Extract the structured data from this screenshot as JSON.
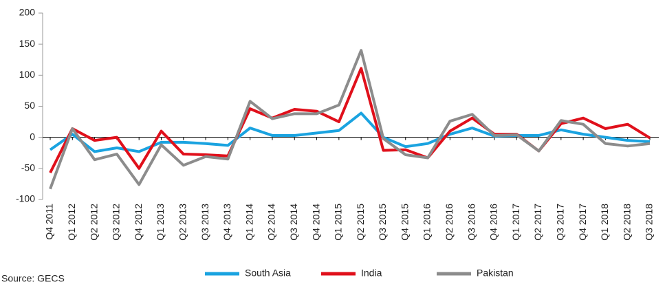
{
  "chart_data": {
    "type": "line",
    "categories": [
      "Q4 2011",
      "Q1 2012",
      "Q2 2012",
      "Q3 2012",
      "Q4 2012",
      "Q1 2013",
      "Q2 2013",
      "Q3 2013",
      "Q4 2013",
      "Q1 2014",
      "Q2 2014",
      "Q3 2014",
      "Q4 2014",
      "Q1 2015",
      "Q2 2015",
      "Q3 2015",
      "Q4 2015",
      "Q1 2016",
      "Q2 2016",
      "Q3 2016",
      "Q4 2016",
      "Q1 2017",
      "Q2 2017",
      "Q3 2017",
      "Q4 2017",
      "Q1 2018",
      "Q2 2018",
      "Q3 2018"
    ],
    "category_colors": [
      "#d7191c",
      "#222222",
      "#d7191c",
      "#d7191c",
      "#d7191c",
      "#222222",
      "#d7191c",
      "#d7191c",
      "#d7191c",
      "#d7191c",
      "#d7191c",
      "#d7191c",
      "#d7191c",
      "#d7191c",
      "#d7191c",
      "#d7191c",
      "#d7191c",
      "#222222",
      "#d7191c",
      "#d7191c",
      "#d7191c",
      "#222222",
      "#d7191c",
      "#d7191c",
      "#d7191c",
      "#222222",
      "#d7191c",
      "#d7191c"
    ],
    "series": [
      {
        "name": "South Asia",
        "color": "#1aa3e0",
        "values": [
          -20,
          5,
          -23,
          -17,
          -23,
          -8,
          -8,
          -10,
          -13,
          15,
          3,
          3,
          7,
          11,
          39,
          0,
          -15,
          -10,
          5,
          15,
          2,
          3,
          3,
          12,
          5,
          0,
          -5,
          -7
        ]
      },
      {
        "name": "India",
        "color": "#e0101b",
        "values": [
          -57,
          14,
          -5,
          0,
          -50,
          10,
          -27,
          -28,
          -30,
          46,
          31,
          45,
          42,
          25,
          111,
          -21,
          -20,
          -33,
          10,
          31,
          5,
          5,
          -22,
          22,
          31,
          14,
          21,
          -1
        ]
      },
      {
        "name": "Pakistan",
        "color": "#8c8c8c",
        "values": [
          -83,
          14,
          -36,
          -27,
          -76,
          -12,
          -45,
          -31,
          -35,
          58,
          30,
          38,
          38,
          52,
          140,
          -2,
          -28,
          -33,
          26,
          37,
          3,
          4,
          -22,
          27,
          21,
          -10,
          -14,
          -10
        ]
      }
    ],
    "ylim": [
      -100,
      200
    ],
    "yticks": [
      -100,
      -50,
      0,
      50,
      100,
      150,
      200
    ],
    "source": "Source: GECS"
  }
}
